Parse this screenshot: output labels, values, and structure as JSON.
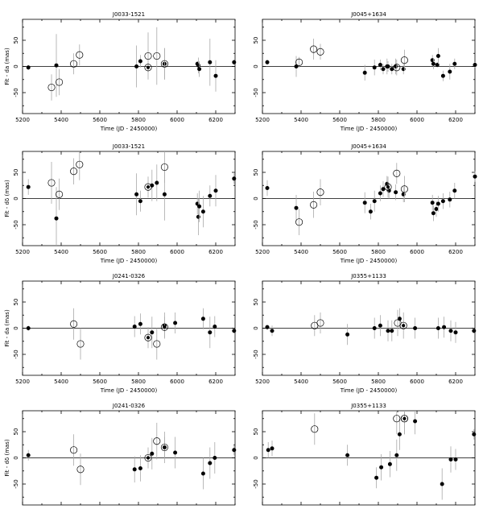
{
  "chart_data": [
    {
      "type": "scatter",
      "title": "J0033-1521",
      "xlabel": "Time (JD - 2450000)",
      "ylabel": "Fit - da (mas)",
      "xlim": [
        5200,
        6300
      ],
      "ylim": [
        -90,
        90
      ],
      "xticks": [
        5200,
        5400,
        5600,
        5800,
        6000,
        6200
      ],
      "yticks": [
        -50,
        0,
        50
      ],
      "series": [
        {
          "marker": "filled",
          "x": [
            5230,
            5375,
            5790,
            5810,
            5935,
            6105,
            6110,
            6115,
            6170,
            6200,
            6295
          ],
          "y": [
            -2,
            2,
            0,
            10,
            5,
            5,
            2,
            -5,
            8,
            -18,
            8
          ],
          "err": [
            5,
            60,
            40,
            12,
            30,
            5,
            15,
            15,
            45,
            30,
            5
          ]
        },
        {
          "marker": "open",
          "x": [
            5350,
            5390,
            5465,
            5495,
            5850,
            5895,
            5935
          ],
          "y": [
            -40,
            -30,
            5,
            22,
            20,
            20,
            5
          ],
          "err": [
            25,
            25,
            20,
            20,
            45,
            55,
            30
          ]
        },
        {
          "marker": "target",
          "x": [
            5850
          ],
          "y": [
            -2
          ],
          "err": [
            8
          ]
        }
      ]
    },
    {
      "type": "scatter",
      "title": "J0045+1634",
      "xlabel": "Time (JD - 2450000)",
      "ylabel": "",
      "xlim": [
        5200,
        6300
      ],
      "ylim": [
        -90,
        90
      ],
      "xticks": [
        5200,
        5400,
        5600,
        5800,
        6000,
        6200
      ],
      "yticks": [
        -50,
        0,
        50
      ],
      "series": [
        {
          "marker": "filled",
          "x": [
            5225,
            5375,
            5730,
            5780,
            5810,
            5825,
            5845,
            5850,
            5870,
            5890,
            5930,
            6080,
            6085,
            6105,
            6110,
            6135,
            6170,
            6195,
            6300
          ],
          "y": [
            8,
            0,
            -12,
            -2,
            3,
            -5,
            0,
            0,
            -5,
            0,
            -5,
            12,
            5,
            3,
            20,
            -18,
            -10,
            5,
            3
          ],
          "err": [
            5,
            20,
            15,
            15,
            10,
            10,
            15,
            10,
            10,
            15,
            10,
            10,
            10,
            5,
            15,
            10,
            15,
            10,
            5
          ]
        },
        {
          "marker": "open",
          "x": [
            5390,
            5465,
            5500,
            5895,
            5935
          ],
          "y": [
            8,
            33,
            28,
            -2,
            12
          ],
          "err": [
            10,
            20,
            15,
            15,
            20
          ]
        }
      ]
    },
    {
      "type": "scatter",
      "title": "J0033-1521",
      "xlabel": "Time (JD - 2450000)",
      "ylabel": "Fit - dδ (mas)",
      "xlim": [
        5200,
        6300
      ],
      "ylim": [
        -90,
        90
      ],
      "xticks": [
        5200,
        5400,
        5600,
        5800,
        6000,
        6200
      ],
      "yticks": [
        -50,
        0,
        50
      ],
      "series": [
        {
          "marker": "filled",
          "x": [
            5230,
            5375,
            5790,
            5810,
            5870,
            5895,
            5935,
            6105,
            6110,
            6115,
            6135,
            6170,
            6200,
            6295
          ],
          "y": [
            22,
            -38,
            8,
            -5,
            25,
            30,
            8,
            -10,
            -35,
            -15,
            -25,
            5,
            15,
            38
          ],
          "err": [
            15,
            60,
            40,
            20,
            30,
            35,
            50,
            20,
            35,
            30,
            30,
            20,
            30,
            10
          ]
        },
        {
          "marker": "open",
          "x": [
            5350,
            5390,
            5465,
            5495,
            5935
          ],
          "y": [
            30,
            8,
            52,
            65,
            60
          ],
          "err": [
            40,
            30,
            25,
            30,
            30
          ]
        },
        {
          "marker": "target",
          "x": [
            5850
          ],
          "y": [
            22
          ],
          "err": [
            20
          ]
        }
      ]
    },
    {
      "type": "scatter",
      "title": "J0045+1634",
      "xlabel": "Time (JD - 2450000)",
      "ylabel": "",
      "xlim": [
        5200,
        6300
      ],
      "ylim": [
        -90,
        90
      ],
      "xticks": [
        5200,
        5400,
        5600,
        5800,
        6000,
        6200
      ],
      "yticks": [
        -50,
        0,
        50
      ],
      "series": [
        {
          "marker": "filled",
          "x": [
            5225,
            5375,
            5730,
            5760,
            5780,
            5810,
            5825,
            5845,
            5855,
            5890,
            5930,
            6080,
            6085,
            6100,
            6110,
            6135,
            6170,
            6195,
            6300
          ],
          "y": [
            20,
            -18,
            -8,
            -25,
            -5,
            10,
            18,
            28,
            15,
            12,
            8,
            -8,
            -28,
            -20,
            -10,
            -5,
            -2,
            15,
            42
          ],
          "err": [
            15,
            25,
            20,
            15,
            20,
            15,
            15,
            15,
            15,
            15,
            15,
            15,
            15,
            15,
            15,
            15,
            15,
            15,
            10
          ]
        },
        {
          "marker": "open",
          "x": [
            5390,
            5465,
            5500,
            5895,
            5935
          ],
          "y": [
            -45,
            -12,
            12,
            48,
            18
          ],
          "err": [
            25,
            25,
            25,
            20,
            25
          ]
        },
        {
          "marker": "target",
          "x": [
            5850
          ],
          "y": [
            22
          ],
          "err": [
            20
          ]
        }
      ]
    },
    {
      "type": "scatter",
      "title": "J0241-0326",
      "xlabel": "Time (JD - 2450000)",
      "ylabel": "Fit - da (mas)",
      "xlim": [
        5200,
        6300
      ],
      "ylim": [
        -90,
        90
      ],
      "xticks": [
        5200,
        5400,
        5600,
        5800,
        6000,
        6200
      ],
      "yticks": [
        -50,
        0,
        50
      ],
      "series": [
        {
          "marker": "filled",
          "x": [
            5230,
            5780,
            5810,
            5870,
            5935,
            5990,
            6135,
            6170,
            6195,
            6295
          ],
          "y": [
            0,
            3,
            8,
            -8,
            5,
            10,
            18,
            -8,
            3,
            -5
          ],
          "err": [
            5,
            20,
            20,
            30,
            25,
            20,
            20,
            30,
            20,
            5
          ]
        },
        {
          "marker": "open",
          "x": [
            5465,
            5500,
            5895
          ],
          "y": [
            8,
            -30,
            -30
          ],
          "err": [
            30,
            30,
            30
          ]
        },
        {
          "marker": "target",
          "x": [
            5850,
            5935
          ],
          "y": [
            -18,
            2
          ],
          "err": [
            20,
            20
          ]
        }
      ]
    },
    {
      "type": "scatter",
      "title": "J0355+1133",
      "xlabel": "Time (JD - 2450000)",
      "ylabel": "",
      "xlim": [
        5200,
        6300
      ],
      "ylim": [
        -90,
        90
      ],
      "xticks": [
        5200,
        5400,
        5600,
        5800,
        6000,
        6200
      ],
      "yticks": [
        -50,
        0,
        50
      ],
      "series": [
        {
          "marker": "filled",
          "x": [
            5225,
            5250,
            5640,
            5780,
            5810,
            5850,
            5870,
            5910,
            5990,
            6110,
            6140,
            6175,
            6200,
            6295
          ],
          "y": [
            2,
            -5,
            -12,
            0,
            5,
            -5,
            -5,
            18,
            0,
            0,
            2,
            -5,
            -8,
            -5
          ],
          "err": [
            5,
            10,
            20,
            20,
            20,
            20,
            20,
            20,
            20,
            20,
            20,
            20,
            20,
            5
          ]
        },
        {
          "marker": "open",
          "x": [
            5470,
            5500,
            5900
          ],
          "y": [
            5,
            10,
            10
          ],
          "err": [
            20,
            20,
            25
          ]
        },
        {
          "marker": "target",
          "x": [
            5930
          ],
          "y": [
            5
          ],
          "err": [
            25
          ]
        }
      ]
    },
    {
      "type": "scatter",
      "title": "J0241-0326",
      "xlabel": "Time (JD - 2450000)",
      "ylabel": "Fit - dδ (mas)",
      "xlim": [
        5200,
        6300
      ],
      "ylim": [
        -90,
        90
      ],
      "xticks": [
        5200,
        5400,
        5600,
        5800,
        6000,
        6200
      ],
      "yticks": [
        -50,
        0,
        50
      ],
      "series": [
        {
          "marker": "filled",
          "x": [
            5230,
            5780,
            5810,
            5870,
            5935,
            5990,
            6135,
            6170,
            6195,
            6295
          ],
          "y": [
            5,
            -22,
            -20,
            8,
            20,
            10,
            -30,
            -10,
            0,
            15
          ],
          "err": [
            10,
            25,
            25,
            30,
            30,
            30,
            30,
            30,
            30,
            10
          ]
        },
        {
          "marker": "open",
          "x": [
            5465,
            5500,
            5895
          ],
          "y": [
            15,
            -22,
            32
          ],
          "err": [
            30,
            30,
            35
          ]
        },
        {
          "marker": "target",
          "x": [
            5850,
            5935
          ],
          "y": [
            0,
            20
          ],
          "err": [
            20,
            20
          ]
        }
      ]
    },
    {
      "type": "scatter",
      "title": "J0355+1133",
      "xlabel": "Time (JD - 2450000)",
      "ylabel": "",
      "xlim": [
        5200,
        6300
      ],
      "ylim": [
        -90,
        90
      ],
      "xticks": [
        5200,
        5400,
        5600,
        5800,
        6000,
        6200
      ],
      "yticks": [
        -50,
        0,
        50
      ],
      "series": [
        {
          "marker": "filled",
          "x": [
            5230,
            5250,
            5640,
            5790,
            5815,
            5860,
            5895,
            5910,
            5990,
            6130,
            6175,
            6200,
            6295
          ],
          "y": [
            15,
            18,
            5,
            -38,
            -18,
            -12,
            5,
            45,
            70,
            -50,
            -3,
            -3,
            45
          ],
          "err": [
            15,
            15,
            20,
            20,
            25,
            25,
            30,
            30,
            25,
            30,
            25,
            20,
            10
          ]
        },
        {
          "marker": "open",
          "x": [
            5470,
            5895,
            5935
          ],
          "y": [
            55,
            75,
            75
          ],
          "err": [
            30,
            30,
            30
          ]
        },
        {
          "marker": "target",
          "x": [
            5935
          ],
          "y": [
            75
          ],
          "err": [
            30
          ]
        }
      ]
    }
  ]
}
